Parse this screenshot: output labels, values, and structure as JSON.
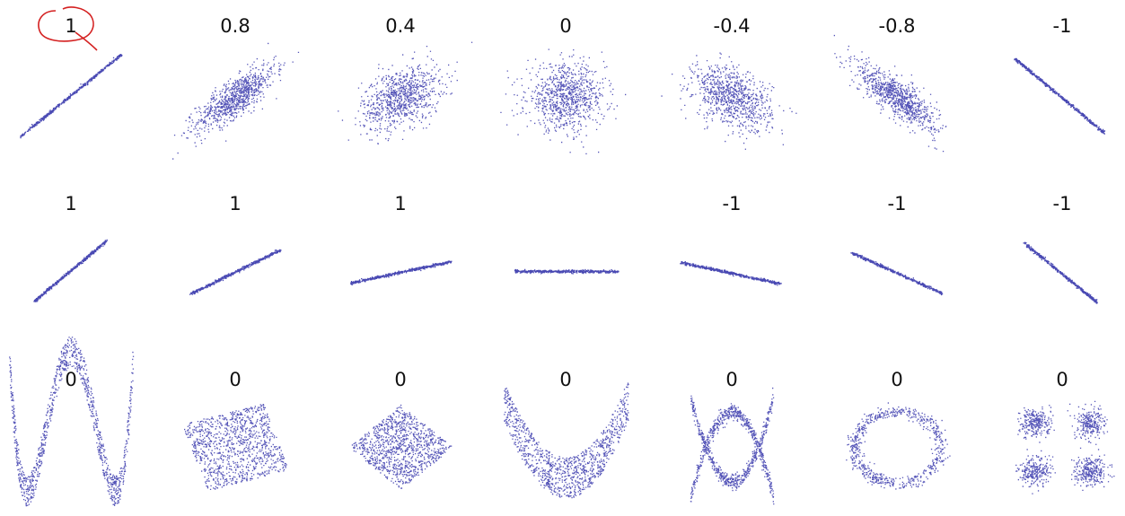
{
  "rows": [
    [
      "1",
      "0.8",
      "0.4",
      "0",
      "-0.4",
      "-0.8",
      "-1"
    ],
    [
      "1",
      "1",
      "1",
      null,
      "-1",
      "-1",
      "-1"
    ],
    [
      "0",
      "0",
      "0",
      "0",
      "0",
      "0",
      "0"
    ]
  ]
}
